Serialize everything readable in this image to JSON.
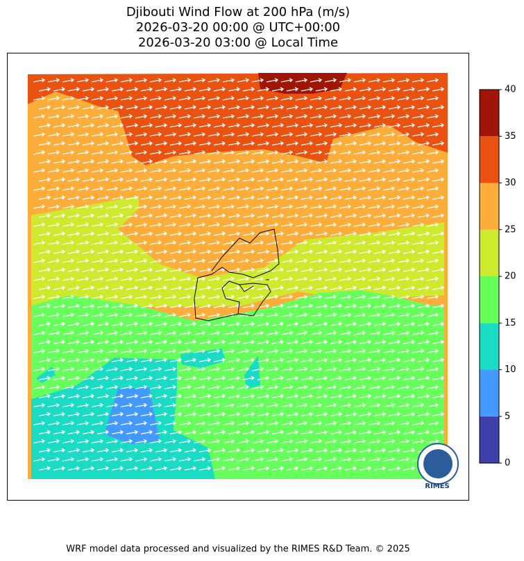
{
  "title": [
    "Djibouti Wind Flow at 200 hPa (m/s)",
    "2026-03-20 00:00 @ UTC+00:00",
    "2026-03-20 03:00 @ Local Time"
  ],
  "colorbar": {
    "levels": [
      0,
      5,
      10,
      15,
      20,
      25,
      30,
      35,
      40
    ],
    "colors": [
      "#3f3fa8",
      "#4499ff",
      "#1adcc4",
      "#66ff5b",
      "#cdea2e",
      "#fdad3a",
      "#ea5212",
      "#a01505"
    ]
  },
  "logo": "RIMES",
  "footer": "WRF model data processed and visualized by the RIMES R&D Team. © 2025"
}
